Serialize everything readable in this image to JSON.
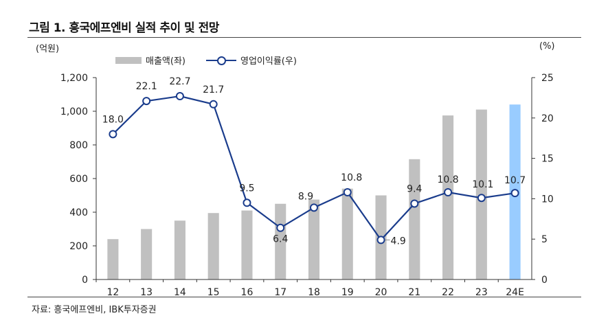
{
  "figure": {
    "title": "그림 1. 흥국에프엔비 실적 추이 및 전망",
    "unit_left": "(억원)",
    "unit_right": "(%)",
    "source": "자료: 흥국에프엔비, IBK투자증권"
  },
  "legend": {
    "bar_label": "매출액(좌)",
    "line_label": "영업이익률(우)"
  },
  "colors": {
    "bar": "#c0c0c0",
    "bar_forecast": "#99ccff",
    "line": "#1a3c8c"
  },
  "chart_data": {
    "type": "bar",
    "categories": [
      "12",
      "13",
      "14",
      "15",
      "16",
      "17",
      "18",
      "19",
      "20",
      "21",
      "22",
      "23",
      "24E"
    ],
    "series": [
      {
        "name": "매출액(좌)",
        "axis": "left",
        "type": "bar",
        "values": [
          240,
          300,
          350,
          395,
          410,
          450,
          475,
          540,
          500,
          715,
          975,
          1010,
          1040
        ]
      },
      {
        "name": "영업이익률(우)",
        "axis": "right",
        "type": "line",
        "values": [
          18.0,
          22.1,
          22.7,
          21.7,
          9.5,
          6.4,
          8.9,
          10.8,
          4.9,
          9.4,
          10.8,
          10.1,
          10.7
        ],
        "labels": [
          "18.0",
          "22.1",
          "22.7",
          "21.7",
          "9.5",
          "6.4",
          "8.9",
          "10.8",
          "4.9",
          "9.4",
          "10.8",
          "10.1",
          "10.7"
        ]
      }
    ],
    "y_left": {
      "min": 0,
      "max": 1200,
      "ticks": [
        "0",
        "200",
        "400",
        "600",
        "800",
        "1,000",
        "1,200"
      ]
    },
    "y_right": {
      "min": 0,
      "max": 25,
      "ticks": [
        "0",
        "5",
        "10",
        "15",
        "20",
        "25"
      ]
    },
    "grid": false,
    "legend_position": "top-left"
  }
}
